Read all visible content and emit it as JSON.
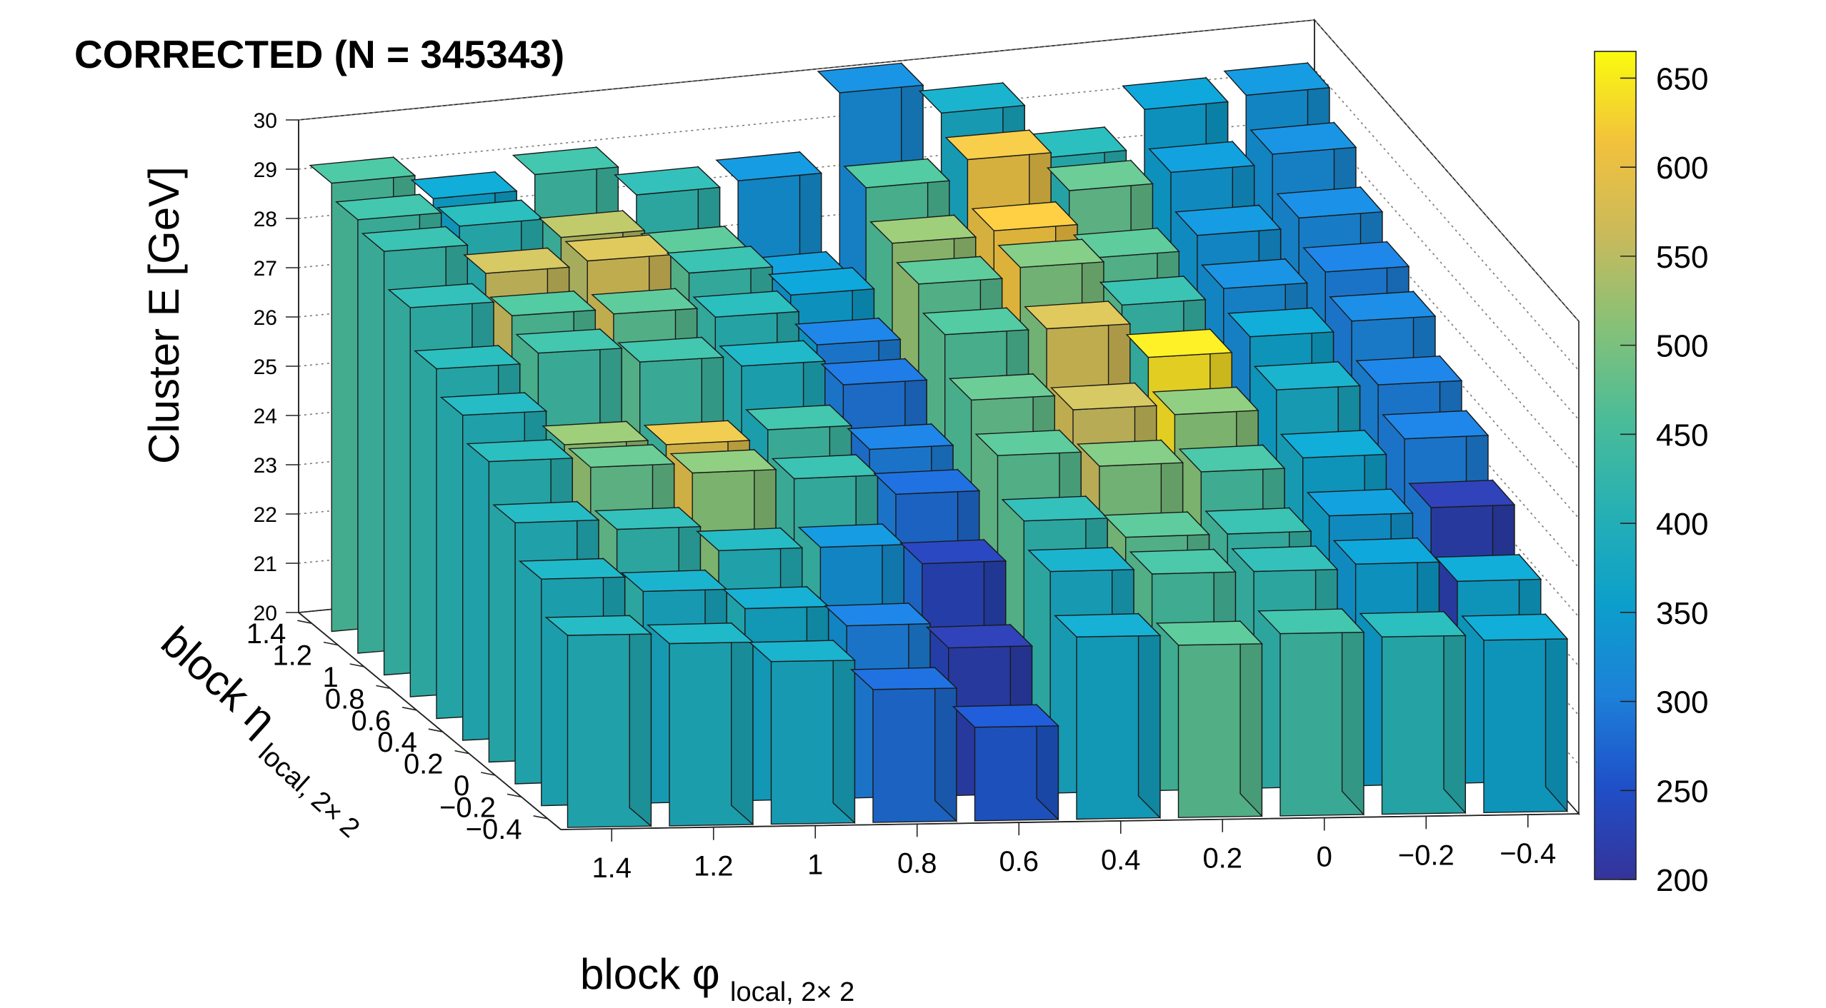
{
  "chart_data": {
    "type": "lego3d",
    "title": "CORRECTED  (N = 345343)",
    "xlabel": "block φ",
    "xlabel_sub": "local, 2× 2",
    "ylabel": "block η",
    "ylabel_sub": "local, 2× 2",
    "zlabel": "Cluster E  [GeV]",
    "x_ticks": [
      "1.4",
      "1.2",
      "1",
      "0.8",
      "0.6",
      "0.4",
      "0.2",
      "0",
      "−0.2",
      "−0.4"
    ],
    "y_ticks": [
      "1.4",
      "1.2",
      "1",
      "0.8",
      "0.6",
      "0.4",
      "0.2",
      "0",
      "−0.2",
      "−0.4"
    ],
    "z_ticks": [
      "20",
      "21",
      "22",
      "23",
      "24",
      "25",
      "26",
      "27",
      "28",
      "29",
      "30"
    ],
    "zlim": [
      20,
      30
    ],
    "color_scale": {
      "ticks": [
        "200",
        "250",
        "300",
        "350",
        "400",
        "450",
        "500",
        "550",
        "600",
        "650"
      ],
      "range": [
        200,
        665
      ],
      "palette": [
        "#35339a",
        "#1f4fc8",
        "#1d80d9",
        "#0c9fcb",
        "#26b0b4",
        "#4bbc98",
        "#86c178",
        "#c9ba5b",
        "#f2c13d",
        "#f9fb0e"
      ]
    },
    "bins": {
      "x_centers": [
        1.4,
        1.2,
        1.0,
        0.8,
        0.6,
        0.4,
        0.2,
        0.0,
        -0.2,
        -0.4
      ],
      "y_centers_back_to_front": [
        1.4,
        1.2,
        1.0,
        0.8,
        0.6,
        0.4,
        0.2,
        0.0,
        -0.2,
        -0.4
      ],
      "counts": [
        [
          455,
          360,
          440,
          420,
          330,
          320,
          380,
          410,
          350,
          330
        ],
        [
          440,
          410,
          545,
          470,
          340,
          460,
          600,
          480,
          340,
          320
        ],
        [
          430,
          560,
          570,
          430,
          350,
          520,
          610,
          470,
          330,
          315
        ],
        [
          420,
          460,
          470,
          410,
          300,
          470,
          500,
          430,
          320,
          300
        ],
        [
          410,
          440,
          440,
          390,
          290,
          460,
          570,
          640,
          360,
          310
        ],
        [
          400,
          520,
          590,
          440,
          300,
          480,
          560,
          510,
          380,
          300
        ],
        [
          410,
          480,
          510,
          430,
          280,
          470,
          500,
          450,
          360,
          300
        ],
        [
          400,
          420,
          400,
          330,
          230,
          420,
          470,
          430,
          340,
          220
        ],
        [
          390,
          380,
          370,
          300,
          220,
          380,
          450,
          420,
          350,
          360
        ],
        [
          400,
          390,
          380,
          280,
          260,
          370,
          470,
          440,
          410,
          360
        ]
      ],
      "z_values_gev": [
        [
          29.1,
          28.6,
          28.9,
          28.3,
          28.4,
          30.0,
          29.4,
          28.3,
          29.1,
          29.2
        ],
        [
          28.8,
          28.5,
          28.1,
          27.6,
          26.9,
          28.6,
          29.0,
          28.2,
          28.4,
          28.6
        ],
        [
          28.6,
          28.0,
          28.1,
          27.7,
          27.1,
          28.0,
          28.1,
          27.4,
          27.7,
          27.9
        ],
        [
          27.9,
          27.6,
          27.5,
          27.3,
          26.6,
          27.7,
          27.9,
          27.0,
          27.2,
          27.4
        ],
        [
          27.1,
          27.3,
          27.0,
          26.8,
          26.3,
          27.2,
          27.2,
          26.5,
          26.8,
          27.0
        ],
        [
          26.6,
          25.9,
          25.8,
          26.0,
          25.5,
          26.4,
          26.1,
          25.9,
          26.3,
          26.3
        ],
        [
          26.1,
          25.9,
          25.7,
          25.5,
          25.1,
          25.8,
          25.5,
          25.3,
          25.5,
          25.8
        ],
        [
          25.3,
          25.1,
          24.6,
          24.6,
          24.2,
          25.0,
          24.6,
          24.6,
          24.9,
          25.0
        ],
        [
          24.6,
          24.3,
          23.9,
          23.5,
          23.0,
          24.5,
          24.4,
          24.4,
          24.5,
          24.1
        ],
        [
          23.9,
          23.7,
          23.3,
          22.7,
          21.9,
          23.7,
          23.5,
          23.7,
          23.6,
          23.5
        ]
      ]
    }
  }
}
